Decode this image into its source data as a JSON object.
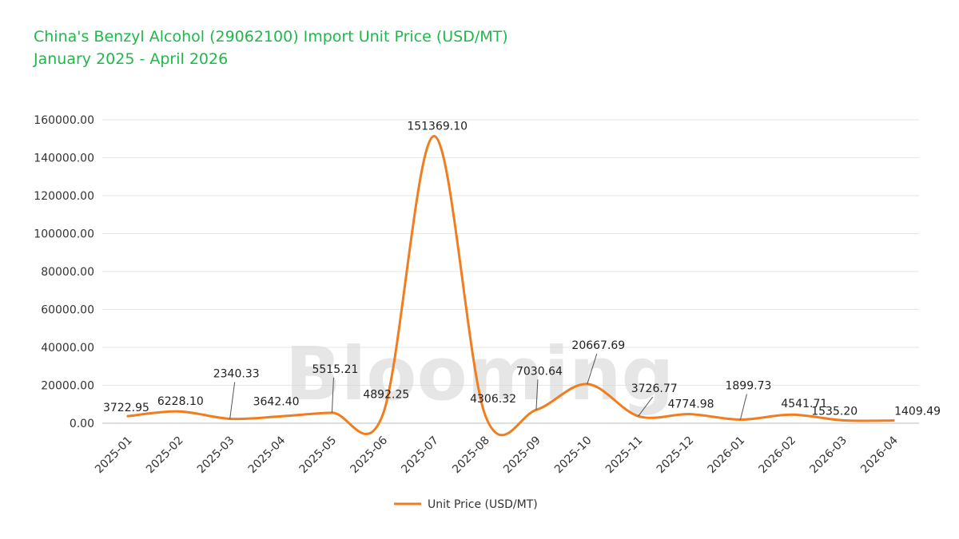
{
  "chart_data": {
    "type": "line",
    "title": "China's Benzyl Alcohol (29062100) Import Unit Price (USD/MT)",
    "subtitle": "January 2025 - April 2026",
    "watermark": "Blooming",
    "categories": [
      "2025-01",
      "2025-02",
      "2025-03",
      "2025-04",
      "2025-05",
      "2025-06",
      "2025-07",
      "2025-08",
      "2025-09",
      "2025-10",
      "2025-11",
      "2025-12",
      "2026-01",
      "2026-02",
      "2026-03",
      "2026-04"
    ],
    "series": [
      {
        "name": "Unit Price (USD/MT)",
        "color": "#f07d1f",
        "values": [
          3722.95,
          6228.1,
          2340.33,
          3642.4,
          5515.21,
          4892.25,
          151369.1,
          4306.32,
          7030.64,
          20667.69,
          3726.77,
          4774.98,
          1899.73,
          4541.71,
          1535.2,
          1409.49
        ],
        "labels": [
          "3722.95",
          "6228.10",
          "2340.33",
          "3642.40",
          "5515.21",
          "4892.25",
          "151369.10",
          "4306.32",
          "7030.64",
          "20667.69",
          "3726.77",
          "4774.98",
          "1899.73",
          "4541.71",
          "1535.20",
          "1409.49"
        ]
      }
    ],
    "ylim": [
      0,
      160000
    ],
    "yticks": [
      "0.00",
      "20000.00",
      "40000.00",
      "60000.00",
      "80000.00",
      "100000.00",
      "120000.00",
      "140000.00",
      "160000.00"
    ],
    "xlabel": "",
    "ylabel": "",
    "grid": true,
    "legend_position": "bottom-center"
  }
}
